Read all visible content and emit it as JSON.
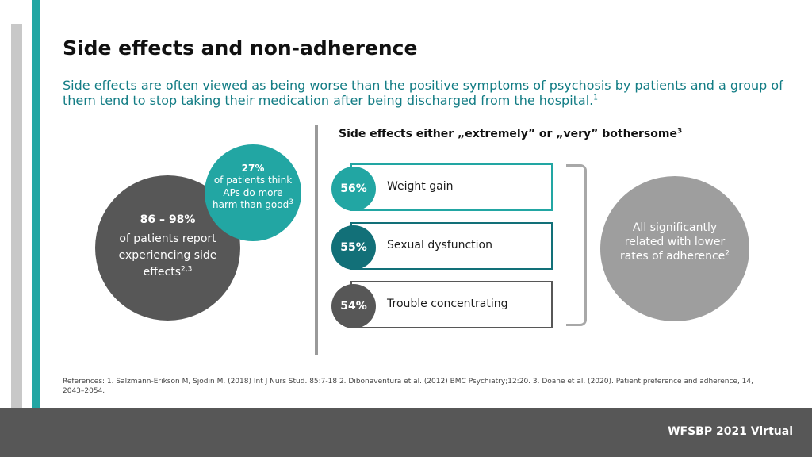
{
  "title": "Side effects and non-adherence",
  "subtitle": "Side effects are often viewed as being worse than the positive symptoms of psychosis by patients and a group of them tend to stop taking their medication after being discharged from the hospital.",
  "subtitle_ref": "1",
  "big_circle": {
    "pct": "86 – 98%",
    "text": "of patients report experiencing side effects",
    "ref": "2,3"
  },
  "teal_circle": {
    "pct": "27%",
    "text": "of patients think APs do more harm than good",
    "ref": "3"
  },
  "section_heading": "Side effects either „extremely” or „very” bothersome",
  "section_heading_ref": "3",
  "rows": [
    {
      "pct": "56%",
      "label": "Weight gain",
      "color": "#22a6a3"
    },
    {
      "pct": "55%",
      "label": "Sexual dysfunction",
      "color": "#127078"
    },
    {
      "pct": "54%",
      "label": "Trouble concentrating",
      "color": "#575757"
    }
  ],
  "right_circle": {
    "text": "All significantly related with lower rates of adherence",
    "ref": "2"
  },
  "references": "References: 1. Salzmann-Erikson M, Sjödin M. (2018) Int J Nurs Stud. 85:7-18 2. Dibonaventura et al. (2012) BMC Psychiatry;12:20. 3. Doane et al. (2020). Patient preference and adherence, 14, 2043–2054.",
  "footer": "WFSBP 2021 Virtual",
  "colors": {
    "teal": "#22a6a3",
    "dark_teal": "#127078",
    "dark_gray": "#575757",
    "light_gray": "#9e9e9e"
  }
}
